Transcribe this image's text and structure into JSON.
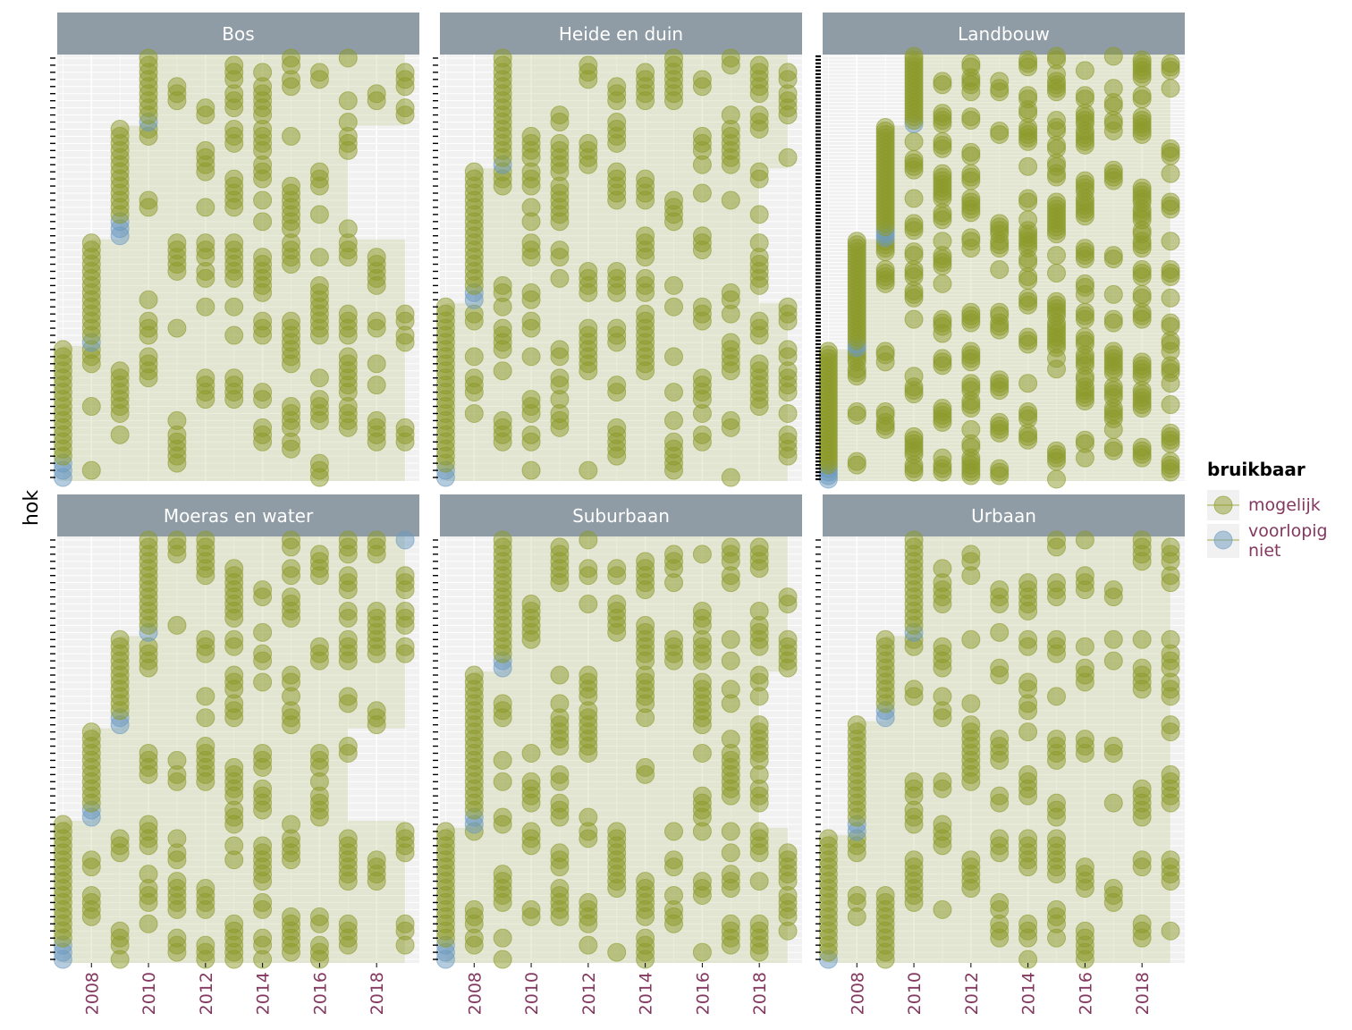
{
  "chart_data": {
    "type": "scatter",
    "title": "",
    "ylabel": "hok",
    "xlabel": "",
    "x_ticks": [
      2008,
      2010,
      2012,
      2014,
      2016,
      2018
    ],
    "xlim": [
      2006.8,
      2019.5
    ],
    "grid": true,
    "legend": {
      "title": "bruikbaar",
      "position": "right",
      "entries": [
        {
          "key": "mogelijk",
          "label": "mogelijk",
          "color": "#8c9a2a"
        },
        {
          "key": "voorlopig_niet",
          "label": "voorlopig niet",
          "color": "#6b9ac0"
        }
      ]
    },
    "colors": {
      "mogelijk": "#8c9a2a",
      "voorlopig_niet": "#6b9ac0",
      "band": "#c9cf9c",
      "strip": "#8f9ca5",
      "panel_bg": "#f1f1f1",
      "grid": "#ffffff"
    },
    "facets": [
      {
        "name": "Bos",
        "n_hok": 60,
        "cohorts": [
          {
            "start": 2007,
            "hok_min": 1,
            "hok_max": 19,
            "years": [
              2007,
              2008,
              2009,
              2010,
              2011,
              2012,
              2013,
              2014,
              2015,
              2016,
              2017,
              2018,
              2019
            ],
            "blocked_first": 3
          },
          {
            "start": 2008,
            "hok_min": 20,
            "hok_max": 34,
            "years": [
              2008,
              2010,
              2011,
              2012,
              2013,
              2014,
              2015,
              2016,
              2017,
              2018,
              2019
            ],
            "blocked_first": 1
          },
          {
            "start": 2009,
            "hok_min": 35,
            "hok_max": 50,
            "years": [
              2009,
              2010,
              2012,
              2013,
              2014,
              2015,
              2016,
              2017
            ],
            "blocked_first": 3
          },
          {
            "start": 2010,
            "hok_min": 51,
            "hok_max": 60,
            "years": [
              2010,
              2011,
              2012,
              2013,
              2014,
              2015,
              2016,
              2017,
              2018,
              2019
            ],
            "blocked_first": 1
          }
        ]
      },
      {
        "name": "Heide en duin",
        "n_hok": 60,
        "cohorts": [
          {
            "start": 2007,
            "hok_min": 1,
            "hok_max": 25,
            "years": [
              2007,
              2008,
              2009,
              2010,
              2011,
              2012,
              2013,
              2014,
              2015,
              2016,
              2017,
              2018,
              2019
            ],
            "blocked_first": 2
          },
          {
            "start": 2008,
            "hok_min": 26,
            "hok_max": 44,
            "years": [
              2008,
              2009,
              2010,
              2011,
              2012,
              2013,
              2014,
              2015,
              2016,
              2017,
              2018
            ],
            "blocked_first": 2
          },
          {
            "start": 2009,
            "hok_min": 45,
            "hok_max": 60,
            "years": [
              2009,
              2010,
              2011,
              2012,
              2013,
              2014,
              2015,
              2016,
              2017,
              2018,
              2019
            ],
            "blocked_first": 1
          }
        ]
      },
      {
        "name": "Landbouw",
        "n_hok": 120,
        "cohorts": [
          {
            "start": 2007,
            "hok_min": 1,
            "hok_max": 37,
            "years": [
              2007,
              2008,
              2009,
              2010,
              2011,
              2012,
              2013,
              2014,
              2015,
              2016,
              2017,
              2018,
              2019
            ],
            "blocked_first": 4
          },
          {
            "start": 2008,
            "hok_min": 38,
            "hok_max": 68,
            "years": [
              2008,
              2009,
              2010,
              2011,
              2012,
              2013,
              2014,
              2015,
              2016,
              2017,
              2018,
              2019
            ],
            "blocked_first": 2
          },
          {
            "start": 2009,
            "hok_min": 69,
            "hok_max": 100,
            "years": [
              2009,
              2010,
              2011,
              2012,
              2013,
              2014,
              2015,
              2016,
              2017,
              2018,
              2019
            ],
            "blocked_first": 3
          },
          {
            "start": 2010,
            "hok_min": 101,
            "hok_max": 120,
            "years": [
              2010,
              2011,
              2012,
              2013,
              2014,
              2015,
              2016,
              2017,
              2018,
              2019
            ],
            "blocked_first": 1
          }
        ]
      },
      {
        "name": "Moeras en water",
        "n_hok": 60,
        "cohorts": [
          {
            "start": 2007,
            "hok_min": 1,
            "hok_max": 20,
            "years": [
              2007,
              2008,
              2009,
              2010,
              2011,
              2012,
              2013,
              2014,
              2015,
              2016,
              2017,
              2018,
              2019
            ],
            "blocked_first": 3
          },
          {
            "start": 2008,
            "hok_min": 21,
            "hok_max": 33,
            "years": [
              2008,
              2010,
              2011,
              2012,
              2013,
              2014,
              2016,
              2017
            ],
            "blocked_first": 2
          },
          {
            "start": 2009,
            "hok_min": 34,
            "hok_max": 46,
            "years": [
              2009,
              2010,
              2012,
              2013,
              2014,
              2015,
              2016,
              2017,
              2018,
              2019
            ],
            "blocked_first": 2
          },
          {
            "start": 2010,
            "hok_min": 47,
            "hok_max": 60,
            "years": [
              2010,
              2011,
              2012,
              2013,
              2014,
              2015,
              2016,
              2017,
              2018,
              2019
            ],
            "blocked_first": 1
          }
        ]
      },
      {
        "name": "Suburbaan",
        "n_hok": 60,
        "cohorts": [
          {
            "start": 2007,
            "hok_min": 1,
            "hok_max": 19,
            "years": [
              2007,
              2008,
              2009,
              2010,
              2011,
              2012,
              2013,
              2014,
              2015,
              2016,
              2017,
              2018,
              2019
            ],
            "blocked_first": 3
          },
          {
            "start": 2008,
            "hok_min": 20,
            "hok_max": 41,
            "years": [
              2008,
              2009,
              2010,
              2011,
              2012,
              2014,
              2016,
              2017,
              2018
            ],
            "blocked_first": 2
          },
          {
            "start": 2009,
            "hok_min": 42,
            "hok_max": 60,
            "years": [
              2009,
              2010,
              2011,
              2012,
              2013,
              2014,
              2015,
              2016,
              2017,
              2018,
              2019
            ],
            "blocked_first": 2
          }
        ]
      },
      {
        "name": "Urbaan",
        "n_hok": 60,
        "cohorts": [
          {
            "start": 2007,
            "hok_min": 1,
            "hok_max": 18,
            "years": [
              2007,
              2008,
              2009,
              2010,
              2011,
              2012,
              2013,
              2014,
              2015,
              2016,
              2017,
              2018,
              2019
            ],
            "blocked_first": 1
          },
          {
            "start": 2008,
            "hok_min": 19,
            "hok_max": 34,
            "years": [
              2008,
              2010,
              2011,
              2012,
              2013,
              2014,
              2015,
              2016,
              2017,
              2018,
              2019
            ],
            "blocked_first": 2
          },
          {
            "start": 2009,
            "hok_min": 35,
            "hok_max": 46,
            "years": [
              2009,
              2010,
              2011,
              2012,
              2013,
              2014,
              2015,
              2016,
              2017,
              2018,
              2019
            ],
            "blocked_first": 2
          },
          {
            "start": 2010,
            "hok_min": 47,
            "hok_max": 60,
            "years": [
              2010,
              2011,
              2012,
              2013,
              2014,
              2015,
              2016,
              2017,
              2018,
              2019
            ],
            "blocked_first": 1
          }
        ]
      }
    ]
  }
}
